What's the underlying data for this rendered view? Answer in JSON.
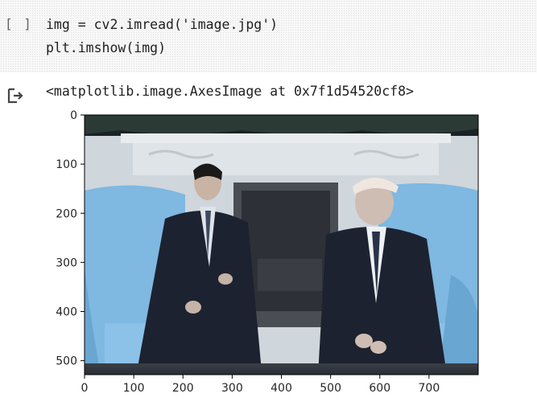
{
  "cell": {
    "run_indicator": "[ ]",
    "code_lines": [
      "img = cv2.imread('image.jpg')",
      "plt.imshow(img)"
    ]
  },
  "output": {
    "icon": "output-arrow-icon",
    "text": "<matplotlib.image.AxesImage at 0x7f1d54520cf8>"
  },
  "plot": {
    "x_ticks": [
      "0",
      "100",
      "200",
      "300",
      "400",
      "500",
      "600",
      "700"
    ],
    "y_ticks": [
      "0",
      "100",
      "200",
      "300",
      "400",
      "500"
    ],
    "image_description_colors": {
      "sky_blue": "#7fb8e0",
      "suit": "#1e2230",
      "wall": "#d8dde2"
    }
  }
}
